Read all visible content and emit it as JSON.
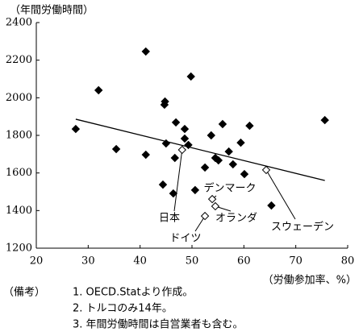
{
  "chart_data": {
    "type": "scatter",
    "y_label": "（年間労働時間）",
    "x_label": "（労働参加率、%）",
    "xlim": [
      20,
      80
    ],
    "xticks": [
      20,
      30,
      40,
      50,
      60,
      70,
      80
    ],
    "ylim": [
      1200,
      2400
    ],
    "yticks": [
      1200,
      1400,
      1600,
      1800,
      2000,
      2200,
      2400
    ],
    "trendline": {
      "x": [
        27.6,
        75.6
      ],
      "y": [
        1886,
        1560
      ],
      "color": "#000000"
    },
    "series": [
      {
        "marker": "filled",
        "color": "#000000",
        "x": [
          27.6,
          32.0,
          35.4,
          41.1,
          41.1,
          44.8,
          44.7,
          45.0,
          44.4,
          46.4,
          46.7,
          46.9,
          48.6,
          48.6,
          49.3,
          49.8,
          50.6,
          52.5,
          53.7,
          54.5,
          55.1,
          55.9,
          57.1,
          57.9,
          59.4,
          60.1,
          61.1,
          65.3,
          75.6
        ],
        "y": [
          1834,
          2040,
          1727,
          2246,
          1697,
          1980,
          1963,
          1757,
          1538,
          1491,
          1680,
          1869,
          1834,
          1783,
          1749,
          2113,
          1509,
          1629,
          1800,
          1680,
          1667,
          1860,
          1714,
          1646,
          1761,
          1594,
          1851,
          1427,
          1881
        ]
      },
      {
        "marker": "open",
        "color": "#000000",
        "x": [
          48.1,
          52.5,
          53.9,
          54.5,
          64.3
        ],
        "y": [
          1723,
          1371,
          1461,
          1423,
          1616
        ],
        "labels": [
          "日本",
          "ドイツ",
          "デンマーク",
          "オランダ",
          "スウェーデン"
        ]
      }
    ],
    "notes_label": "（備考）",
    "notes": [
      "1.  OECD.Statより作成。",
      "2.  トルコのみ14年。",
      "3.  年間労働時間は自営業者も含む。"
    ]
  }
}
